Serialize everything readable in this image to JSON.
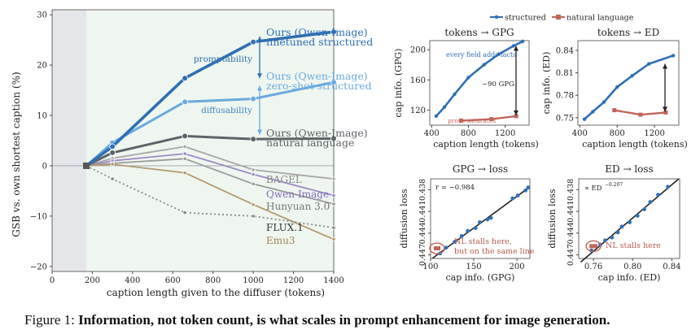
{
  "caption": {
    "prefix": "Figure 1:",
    "bold": "Information, not token count, is what scales in prompt enhancement for image generation."
  },
  "chart_data": [
    {
      "type": "line",
      "xlabel": "caption length given to the diffuser  (tokens)",
      "ylabel": "GSB vs. own shortest caption  (%)",
      "xlim": [
        0,
        1400
      ],
      "ylim": [
        -21,
        31
      ],
      "xticks": [
        "0",
        "200",
        "400",
        "600",
        "800",
        "1000",
        "1200",
        "1400"
      ],
      "yticks": [
        "-20",
        "-10",
        "0",
        "10",
        "20",
        "30"
      ],
      "x": [
        170,
        300,
        660,
        1000,
        1400
      ],
      "series": [
        {
          "name": "Ours (Qwen-Image)",
          "name2": "finetuned structured",
          "color": "#2f6fb3",
          "values": [
            0,
            3.8,
            17.4,
            24.6,
            26.6
          ]
        },
        {
          "name": "Ours (Qwen-Image)",
          "name2": "zero-shot structured",
          "color": "#6aaade",
          "values": [
            0,
            4.6,
            12.7,
            13.3,
            16.6
          ]
        },
        {
          "name": "Ours (Qwen-Image)",
          "name2": "natural language",
          "color": "#5f6368",
          "values": [
            0,
            2.6,
            5.9,
            5.3,
            5.4
          ]
        },
        {
          "name": "BAGEL",
          "color": "#a8a8a8",
          "values": [
            0,
            1.5,
            3.8,
            -0.8,
            -2.6
          ]
        },
        {
          "name": "Qwen-Image",
          "color": "#9b8bc6",
          "values": [
            0,
            1.0,
            2.4,
            -1.7,
            -5.9
          ]
        },
        {
          "name": "Hunyuan 3.0",
          "color": "#9a9a9a",
          "values": [
            0,
            0.5,
            1.4,
            -3.6,
            -7.6
          ]
        },
        {
          "name": "FLUX.1",
          "color": "#888888",
          "dashed": true,
          "values": [
            0,
            -2.6,
            -9.3,
            -10.0,
            -12.3
          ]
        },
        {
          "name": "Emu3",
          "color": "#b39a70",
          "values": [
            0,
            0.3,
            -1.4,
            -7.7,
            -14.6
          ]
        }
      ],
      "annotations": [
        "promptability",
        "diffusability"
      ]
    },
    {
      "type": "line",
      "legend": [
        "structured",
        "natural language"
      ],
      "title": "tokens → GPG",
      "xlabel": "caption length  (tokens)",
      "ylabel": "cap info. (GPG)",
      "xlim": [
        380,
        1460
      ],
      "ylim": [
        100,
        212
      ],
      "xticks": [
        "400",
        "800",
        "1200"
      ],
      "yticks": [
        "120",
        "160",
        "200"
      ],
      "structured": {
        "x": [
          450,
          540,
          650,
          800,
          970,
          1130,
          1290,
          1390
        ],
        "y": [
          112,
          124,
          141,
          163,
          180,
          194,
          205,
          211
        ]
      },
      "natural": {
        "x": [
          720,
          1050,
          1320
        ],
        "y": [
          106,
          108,
          112
        ]
      },
      "annotations": [
        "every field adds facts",
        "~90 GPG",
        "prose saturates"
      ]
    },
    {
      "type": "line",
      "title": "tokens → ED",
      "xlabel": "caption length  (tokens)",
      "ylabel": "cap info. (ED)",
      "xlim": [
        380,
        1460
      ],
      "ylim": [
        0.74,
        0.853
      ],
      "xticks": [
        "400",
        "800",
        "1200"
      ],
      "yticks": [
        "0.75",
        "0.78",
        "0.81",
        "0.84"
      ],
      "structured": {
        "x": [
          450,
          540,
          660,
          800,
          960,
          1140,
          1400
        ],
        "y": [
          0.748,
          0.758,
          0.771,
          0.791,
          0.806,
          0.822,
          0.833
        ]
      },
      "natural": {
        "x": [
          770,
          1050,
          1320
        ],
        "y": [
          0.76,
          0.754,
          0.757
        ]
      }
    },
    {
      "type": "scatter",
      "title": "GPG → loss",
      "xlabel": "cap info. (GPG)",
      "ylabel": "diffusion loss",
      "xlim": [
        100,
        215
      ],
      "ylim": [
        0.4475,
        0.4365
      ],
      "xticks": [
        "100",
        "150",
        "200"
      ],
      "yticks": [
        "0.438",
        "0.441",
        "0.444",
        "0.447"
      ],
      "annotations": [
        "r = −0.984",
        "NL stalls here,",
        "but on the same line"
      ],
      "points": {
        "x": [
          111,
          118,
          128,
          136,
          143,
          152,
          157,
          166,
          170,
          195,
          201,
          210,
          213
        ],
        "y": [
          0.4468,
          0.446,
          0.4452,
          0.4444,
          0.4437,
          0.4433,
          0.4425,
          0.4421,
          0.4419,
          0.4392,
          0.4388,
          0.4381,
          0.4377
        ]
      },
      "nl_points": {
        "x": [
          106,
          109
        ],
        "y": [
          0.4461,
          0.4461
        ]
      }
    },
    {
      "type": "scatter",
      "title": "ED → loss",
      "xlabel": "cap info. (ED)",
      "ylabel": "diffusion loss",
      "xlim": [
        0.745,
        0.848
      ],
      "ylim": [
        0.4475,
        0.4365
      ],
      "xticks": [
        "0.76",
        "0.80",
        "0.84"
      ],
      "yticks": [
        "0.438",
        "0.441",
        "0.444",
        "0.447"
      ],
      "annotations": [
        "∝ ED",
        "−0.207",
        "NL stalls here"
      ],
      "points": {
        "x": [
          0.758,
          0.767,
          0.772,
          0.779,
          0.785,
          0.789,
          0.797,
          0.805,
          0.812,
          0.818,
          0.826,
          0.836
        ],
        "y": [
          0.4464,
          0.4456,
          0.445,
          0.4446,
          0.4439,
          0.4431,
          0.4425,
          0.4416,
          0.4407,
          0.4397,
          0.4387,
          0.4376
        ]
      },
      "nl_points": {
        "x": [
          0.758,
          0.762
        ],
        "y": [
          0.4458,
          0.4458
        ]
      }
    }
  ]
}
